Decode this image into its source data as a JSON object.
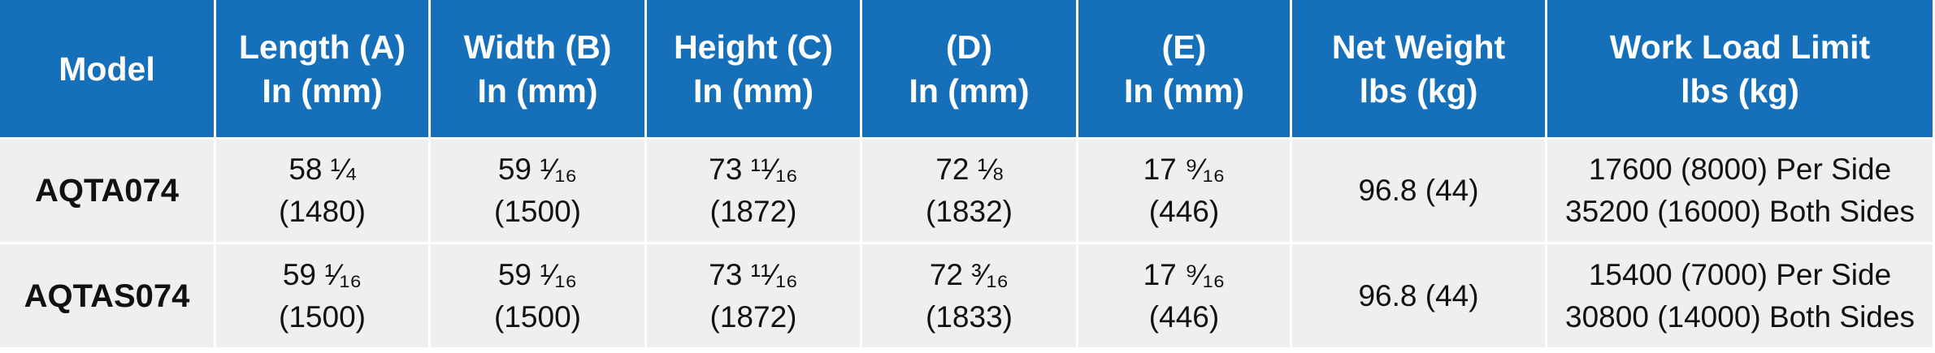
{
  "table": {
    "header": [
      [
        "Model"
      ],
      [
        "Length (A)",
        "In (mm)"
      ],
      [
        "Width (B)",
        "In (mm)"
      ],
      [
        "Height (C)",
        "In (mm)"
      ],
      [
        "(D)",
        "In (mm)"
      ],
      [
        "(E)",
        "In (mm)"
      ],
      [
        "Net Weight",
        "lbs (kg)"
      ],
      [
        "Work Load Limit",
        "lbs (kg)"
      ]
    ],
    "rows": [
      [
        [
          "AQTA074"
        ],
        [
          "58 ¼",
          "(1480)"
        ],
        [
          "59 ¹⁄₁₆",
          "(1500)"
        ],
        [
          "73 ¹¹⁄₁₆",
          "(1872)"
        ],
        [
          "72 ⅛",
          "(1832)"
        ],
        [
          "17 ⁹⁄₁₆",
          "(446)"
        ],
        [
          "96.8 (44)"
        ],
        [
          "17600 (8000) Per Side",
          "35200 (16000) Both Sides"
        ]
      ],
      [
        [
          "AQTAS074"
        ],
        [
          "59 ¹⁄₁₆",
          "(1500)"
        ],
        [
          "59 ¹⁄₁₆",
          "(1500)"
        ],
        [
          "73 ¹¹⁄₁₆",
          "(1872)"
        ],
        [
          "72 ³⁄₁₆",
          "(1833)"
        ],
        [
          "17 ⁹⁄₁₆",
          "(446)"
        ],
        [
          "96.8 (44)"
        ],
        [
          "15400 (7000) Per Side",
          "30800 (14000) Both Sides"
        ]
      ]
    ]
  }
}
